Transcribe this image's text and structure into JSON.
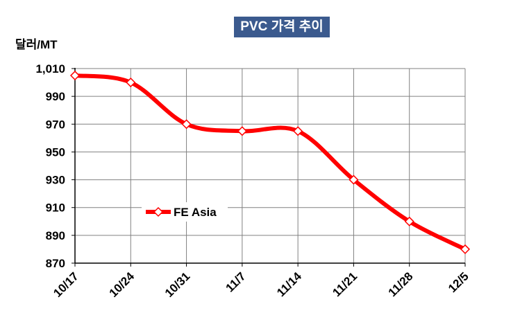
{
  "chart_data": {
    "type": "line",
    "title": "PVC 가격 추이",
    "ylabel": "달러/MT",
    "xlabel": "",
    "categories": [
      "10/17",
      "10/24",
      "10/31",
      "11/7",
      "11/14",
      "11/21",
      "11/28",
      "12/5"
    ],
    "series": [
      {
        "name": "FE Asia",
        "values": [
          1005,
          1000,
          970,
          965,
          965,
          930,
          900,
          880
        ]
      }
    ],
    "ylim": [
      870,
      1010
    ],
    "yticks": [
      870,
      890,
      910,
      930,
      950,
      970,
      990,
      1010
    ],
    "ytick_labels": [
      "870",
      "890",
      "910",
      "930",
      "950",
      "970",
      "990",
      "1,010"
    ],
    "grid": true,
    "legend_position": "left-middle",
    "colors": {
      "series": "#ff0000",
      "marker_fill": "#ffffff",
      "title_bg": "#3b5a8e",
      "title_text": "#ffffff",
      "grid": "#808080"
    }
  }
}
